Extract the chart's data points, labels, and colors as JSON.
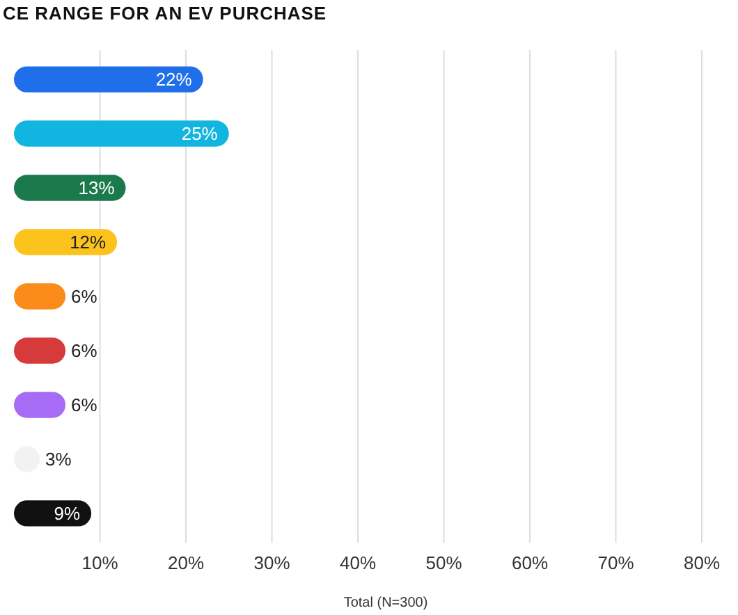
{
  "chart_data": {
    "type": "bar",
    "orientation": "horizontal",
    "title": "CE RANGE FOR AN EV PURCHASE",
    "xlabel": "Total (N=300)",
    "categories": [
      null,
      null,
      null,
      null,
      null,
      null,
      null,
      null,
      null
    ],
    "values": [
      22,
      25,
      13,
      12,
      6,
      6,
      6,
      3,
      9
    ],
    "colors": [
      "#1f6fea",
      "#12b5e0",
      "#1a7a4c",
      "#fbc31b",
      "#fb8c1a",
      "#d63a3a",
      "#a66cf5",
      "#f2f2f2",
      "#111111"
    ],
    "xlim": [
      0,
      80
    ],
    "xticks": [
      {
        "value": 10,
        "label": "10%"
      },
      {
        "value": 20,
        "label": "20%"
      },
      {
        "value": 30,
        "label": "30%"
      },
      {
        "value": 40,
        "label": "40%"
      },
      {
        "value": 50,
        "label": "50%"
      },
      {
        "value": 60,
        "label": "60%"
      },
      {
        "value": 70,
        "label": "70%"
      },
      {
        "value": 80,
        "label": "80%"
      }
    ],
    "grid": "x",
    "value_labels": [
      "22%",
      "25%",
      "13%",
      "12%",
      "6%",
      "6%",
      "6%",
      "3%",
      "9%"
    ]
  }
}
